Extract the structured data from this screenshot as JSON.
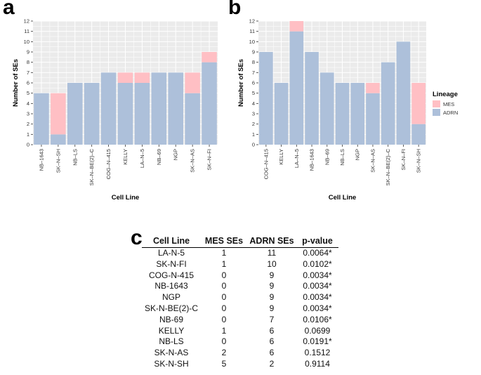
{
  "panels": {
    "a": {
      "letter": "a"
    },
    "b": {
      "letter": "b"
    },
    "c": {
      "letter": "c"
    }
  },
  "legend": {
    "title": "Lineage",
    "items": [
      {
        "label": "MES",
        "color": "#FFBFC4"
      },
      {
        "label": "ADRN",
        "color": "#ADC0DA"
      }
    ]
  },
  "colors": {
    "mes": "#FFBFC4",
    "adrn": "#ADC0DA",
    "panel_bg": "#EBEBEB",
    "grid": "#FFFFFF"
  },
  "chart_data": [
    {
      "type": "bar",
      "stacked": true,
      "panel": "a",
      "categories": [
        "NB–1643",
        "SK–N–SH",
        "NB–LS",
        "SK–N–BE(2)–C",
        "COG–N–415",
        "KELLY",
        "LA–N–5",
        "NB–69",
        "NGP",
        "SK–N–AS",
        "SK–N–FI"
      ],
      "series": [
        {
          "name": "ADRN",
          "values": [
            5,
            1,
            6,
            6,
            7,
            6,
            6,
            7,
            7,
            5,
            8
          ]
        },
        {
          "name": "MES",
          "values": [
            0,
            4,
            0,
            0,
            0,
            1,
            1,
            0,
            0,
            2,
            1
          ]
        }
      ],
      "xlabel": "Cell Line",
      "ylabel": "Number of SEs",
      "ylim": [
        0,
        12
      ],
      "yticks": [
        0,
        1,
        2,
        3,
        4,
        5,
        6,
        7,
        8,
        9,
        10,
        11,
        12
      ]
    },
    {
      "type": "bar",
      "stacked": true,
      "panel": "b",
      "categories": [
        "COG–N–415",
        "KELLY",
        "LA–N–5",
        "NB–1643",
        "NB–69",
        "NB–LS",
        "NGP",
        "SK–N–AS",
        "SK–N–BE(2)–C",
        "SK–N–FI",
        "SK–N–SH"
      ],
      "series": [
        {
          "name": "ADRN",
          "values": [
            9,
            6,
            11,
            9,
            7,
            6,
            6,
            5,
            8,
            10,
            2
          ]
        },
        {
          "name": "MES",
          "values": [
            0,
            0,
            1,
            0,
            0,
            0,
            0,
            1,
            0,
            0,
            4
          ]
        }
      ],
      "xlabel": "Cell Line",
      "ylabel": "Number of SEs",
      "ylim": [
        0,
        12
      ],
      "yticks": [
        0,
        1,
        2,
        3,
        4,
        5,
        6,
        7,
        8,
        9,
        10,
        11,
        12
      ]
    },
    {
      "type": "table",
      "panel": "c",
      "columns": [
        "Cell Line",
        "MES SEs",
        "ADRN SEs",
        "p-value"
      ],
      "rows": [
        [
          "LA-N-5",
          "1",
          "11",
          "0.0064*"
        ],
        [
          "SK-N-FI",
          "1",
          "10",
          "0.0102*"
        ],
        [
          "COG-N-415",
          "0",
          "9",
          "0.0034*"
        ],
        [
          "NB-1643",
          "0",
          "9",
          "0.0034*"
        ],
        [
          "NGP",
          "0",
          "9",
          "0.0034*"
        ],
        [
          "SK-N-BE(2)-C",
          "0",
          "9",
          "0.0034*"
        ],
        [
          "NB-69",
          "0",
          "7",
          "0.0106*"
        ],
        [
          "KELLY",
          "1",
          "6",
          "0.0699"
        ],
        [
          "NB-LS",
          "0",
          "6",
          "0.0191*"
        ],
        [
          "SK-N-AS",
          "2",
          "6",
          "0.1512"
        ],
        [
          "SK-N-SH",
          "5",
          "2",
          "0.9114"
        ]
      ]
    }
  ]
}
